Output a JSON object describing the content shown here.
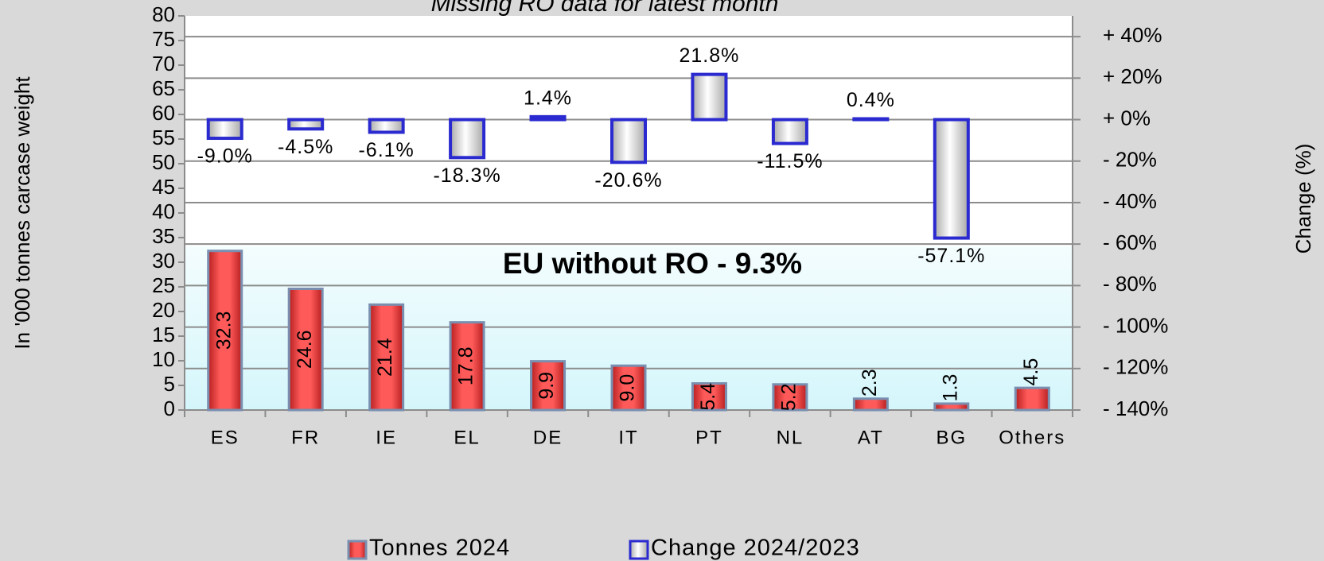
{
  "chart_data": {
    "type": "bar",
    "title": "Missing RO data for latest month",
    "annotation": "EU without RO  - 9.3%",
    "ylabel": "In '000 tonnes carcase  weight",
    "y2label": "Change  (%)",
    "categories": [
      "ES",
      "FR",
      "IE",
      "EL",
      "DE",
      "IT",
      "PT",
      "NL",
      "AT",
      "BG",
      "Others"
    ],
    "series": [
      {
        "name": "Tonnes 2024",
        "color": "#e84444",
        "values": [
          32.3,
          24.6,
          21.4,
          17.8,
          9.9,
          9.0,
          5.4,
          5.2,
          2.3,
          1.3,
          4.5
        ],
        "value_labels": [
          "32.3",
          "24.6",
          "21.4",
          "17.8",
          "9.9",
          "9.0",
          "5.4",
          "5.2",
          "2.3",
          "1.3",
          "4.5"
        ]
      },
      {
        "name": "Change 2024/2023",
        "color": "#2a2ad0",
        "axis": "y2",
        "values": [
          -9.0,
          -4.5,
          -6.1,
          -18.3,
          1.4,
          -20.6,
          21.8,
          -11.5,
          0.4,
          -57.1,
          null
        ],
        "value_labels": [
          "-9.0%",
          "-4.5%",
          "-6.1%",
          "-18.3%",
          "1.4%",
          "-20.6%",
          "21.8%",
          "-11.5%",
          "0.4%",
          "-57.1%",
          null
        ]
      }
    ],
    "ylim": [
      0,
      80
    ],
    "yticks": [
      0,
      5,
      10,
      15,
      20,
      25,
      30,
      35,
      40,
      45,
      50,
      55,
      60,
      65,
      70,
      75,
      80
    ],
    "y2lim": [
      -140,
      50
    ],
    "y2ticks": [
      {
        "value": -140,
        "label": "- 140%"
      },
      {
        "value": -120,
        "label": "- 120%"
      },
      {
        "value": -100,
        "label": "- 100%"
      },
      {
        "value": -80,
        "label": "- 80%"
      },
      {
        "value": -60,
        "label": "- 60%"
      },
      {
        "value": -40,
        "label": "- 40%"
      },
      {
        "value": -20,
        "label": "- 20%"
      },
      {
        "value": 0,
        "label": "+ 0%"
      },
      {
        "value": 20,
        "label": "+ 20%"
      },
      {
        "value": 40,
        "label": "+ 40%"
      }
    ],
    "grid": true,
    "legend": "bottom"
  }
}
